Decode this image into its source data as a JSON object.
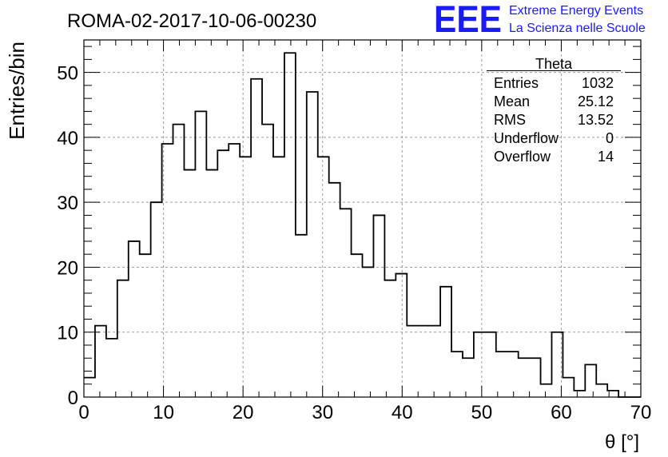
{
  "chart_data": {
    "type": "bar",
    "title": "ROMA-02-2017-10-06-00230",
    "xlabel": "θ [°]",
    "ylabel": "Entries/bin",
    "xlim": [
      0,
      70
    ],
    "ylim": [
      0,
      55
    ],
    "bin_width": 1.4,
    "x_ticks": [
      "0",
      "10",
      "20",
      "30",
      "40",
      "50",
      "60",
      "70"
    ],
    "y_ticks": [
      "0",
      "10",
      "20",
      "30",
      "40",
      "50"
    ],
    "grid": true,
    "values": [
      3,
      11,
      9,
      18,
      24,
      22,
      30,
      39,
      42,
      35,
      44,
      35,
      38,
      39,
      37,
      49,
      42,
      37,
      53,
      25,
      47,
      37,
      33,
      29,
      22,
      20,
      28,
      18,
      19,
      11,
      11,
      11,
      17,
      7,
      6,
      10,
      10,
      7,
      7,
      6,
      6,
      2,
      10,
      3,
      1,
      5,
      2,
      1,
      0,
      0
    ],
    "stats_box": {
      "title": "Theta",
      "rows": [
        {
          "label": "Entries",
          "value": "1032"
        },
        {
          "label": "Mean",
          "value": "25.12"
        },
        {
          "label": "RMS",
          "value": "13.52"
        },
        {
          "label": "Underflow",
          "value": "0"
        },
        {
          "label": "Overflow",
          "value": "14"
        }
      ]
    }
  },
  "logo": {
    "text": "EEE",
    "line1": "Extreme Energy Events",
    "line2": "La Scienza nelle Scuole",
    "color": "#1a1aff"
  }
}
